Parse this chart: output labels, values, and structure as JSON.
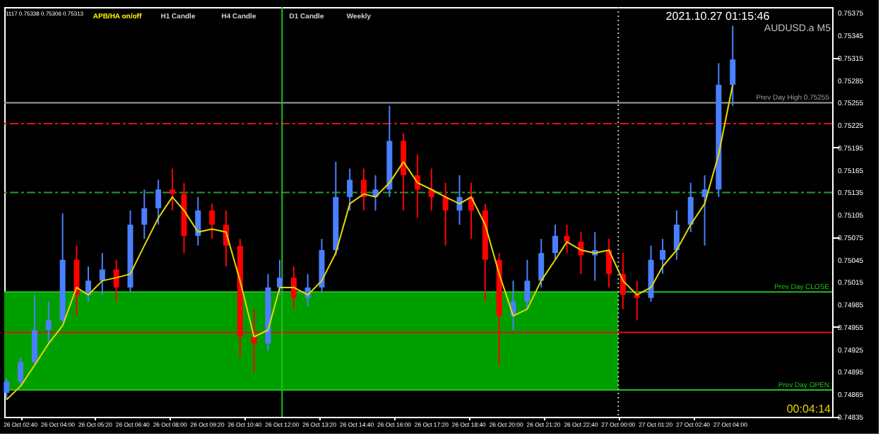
{
  "chart_data": {
    "type": "candlestick",
    "x": [
      "2021-10-26T02:10",
      "2021-10-26T02:40",
      "2021-10-26T03:10",
      "2021-10-26T03:40",
      "2021-10-26T04:10",
      "2021-10-26T04:40",
      "2021-10-26T05:05",
      "2021-10-26T05:35",
      "2021-10-26T06:05",
      "2021-10-26T06:35",
      "2021-10-26T07:05",
      "2021-10-26T07:35",
      "2021-10-26T08:05",
      "2021-10-26T08:30",
      "2021-10-26T09:00",
      "2021-10-26T09:30",
      "2021-10-26T10:00",
      "2021-10-26T10:30",
      "2021-10-26T11:00",
      "2021-10-26T11:30",
      "2021-10-26T11:55",
      "2021-10-26T12:25",
      "2021-10-26T12:55",
      "2021-10-26T13:25",
      "2021-10-26T13:55",
      "2021-10-26T14:25",
      "2021-10-26T14:55",
      "2021-10-26T15:20",
      "2021-10-26T15:50",
      "2021-10-26T16:20",
      "2021-10-26T16:50",
      "2021-10-26T17:20",
      "2021-10-26T17:50",
      "2021-10-26T18:20",
      "2021-10-26T18:45",
      "2021-10-26T19:15",
      "2021-10-26T19:45",
      "2021-10-26T20:15",
      "2021-10-26T20:45",
      "2021-10-26T21:15",
      "2021-10-26T21:45",
      "2021-10-26T22:10",
      "2021-10-26T22:40",
      "2021-10-26T23:10",
      "2021-10-26T23:40",
      "2021-10-27T00:10",
      "2021-10-27T00:40",
      "2021-10-27T01:10",
      "2021-10-27T01:35",
      "2021-10-27T02:05",
      "2021-10-27T02:35",
      "2021-10-27T03:05",
      "2021-10-27T03:35",
      "2021-10-27T04:05"
    ],
    "ohlc": [
      [
        0.74867,
        0.74886,
        0.74858,
        0.74882
      ],
      [
        0.74882,
        0.74914,
        0.74876,
        0.74908
      ],
      [
        0.74908,
        0.74998,
        0.74904,
        0.74951
      ],
      [
        0.74951,
        0.74989,
        0.74933,
        0.74964
      ],
      [
        0.74964,
        0.75107,
        0.74961,
        0.75045
      ],
      [
        0.75045,
        0.75064,
        0.7497,
        0.74998
      ],
      [
        0.74998,
        0.75036,
        0.74989,
        0.75017
      ],
      [
        0.75017,
        0.75054,
        0.74998,
        0.75032
      ],
      [
        0.75032,
        0.75045,
        0.74989,
        0.75008
      ],
      [
        0.75008,
        0.75111,
        0.75002,
        0.75092
      ],
      [
        0.75092,
        0.75139,
        0.75073,
        0.75114
      ],
      [
        0.75114,
        0.75152,
        0.75092,
        0.75139
      ],
      [
        0.75139,
        0.75167,
        0.75111,
        0.75133
      ],
      [
        0.75133,
        0.75148,
        0.75054,
        0.75077
      ],
      [
        0.75077,
        0.75129,
        0.75064,
        0.75111
      ],
      [
        0.75111,
        0.7512,
        0.75073,
        0.75092
      ],
      [
        0.75092,
        0.75111,
        0.75036,
        0.75064
      ],
      [
        0.75064,
        0.75073,
        0.74914,
        0.74942
      ],
      [
        0.74942,
        0.74979,
        0.74895,
        0.74933
      ],
      [
        0.74933,
        0.75026,
        0.74923,
        0.75008
      ],
      [
        0.75008,
        0.75045,
        0.74998,
        0.75021
      ],
      [
        0.75021,
        0.75036,
        0.74979,
        0.74994
      ],
      [
        0.74994,
        0.75026,
        0.74983,
        0.75008
      ],
      [
        0.75008,
        0.75073,
        0.75002,
        0.75058
      ],
      [
        0.75058,
        0.75176,
        0.75051,
        0.75129
      ],
      [
        0.75129,
        0.75167,
        0.75111,
        0.75152
      ],
      [
        0.75152,
        0.75167,
        0.75111,
        0.75129
      ],
      [
        0.75129,
        0.75158,
        0.75111,
        0.75139
      ],
      [
        0.75139,
        0.75251,
        0.75129,
        0.75204
      ],
      [
        0.75204,
        0.75214,
        0.75111,
        0.75158
      ],
      [
        0.75158,
        0.75186,
        0.75101,
        0.75139
      ],
      [
        0.75139,
        0.75167,
        0.75111,
        0.75129
      ],
      [
        0.75129,
        0.75148,
        0.75064,
        0.75111
      ],
      [
        0.75111,
        0.75158,
        0.75092,
        0.75129
      ],
      [
        0.75129,
        0.75148,
        0.75073,
        0.75111
      ],
      [
        0.75111,
        0.7512,
        0.74989,
        0.75045
      ],
      [
        0.75045,
        0.75054,
        0.74904,
        0.7497
      ],
      [
        0.7497,
        0.75017,
        0.74951,
        0.74989
      ],
      [
        0.74989,
        0.75045,
        0.74979,
        0.75017
      ],
      [
        0.75017,
        0.75073,
        0.75008,
        0.75054
      ],
      [
        0.75054,
        0.75092,
        0.75045,
        0.75077
      ],
      [
        0.75077,
        0.75092,
        0.75054,
        0.75069
      ],
      [
        0.75069,
        0.75082,
        0.75026,
        0.75051
      ],
      [
        0.75051,
        0.75082,
        0.75017,
        0.75058
      ],
      [
        0.75058,
        0.75073,
        0.75008,
        0.75026
      ],
      [
        0.75026,
        0.75054,
        0.74979,
        0.74998
      ],
      [
        0.74998,
        0.75017,
        0.74964,
        0.74994
      ],
      [
        0.74994,
        0.75064,
        0.74989,
        0.75045
      ],
      [
        0.75045,
        0.75073,
        0.75026,
        0.75058
      ],
      [
        0.75058,
        0.75111,
        0.75045,
        0.75092
      ],
      [
        0.75092,
        0.75148,
        0.75082,
        0.75129
      ],
      [
        0.75129,
        0.75158,
        0.75064,
        0.75139
      ],
      [
        0.75139,
        0.75308,
        0.75129,
        0.75279
      ],
      [
        0.75279,
        0.75358,
        0.75251,
        0.75313
      ]
    ],
    "colors": [
      "#4a7fff",
      "#4a7fff",
      "#4a7fff",
      "#4a7fff",
      "#4a7fff",
      "#ff0000",
      "#4a7fff",
      "#4a7fff",
      "#ff0000",
      "#4a7fff",
      "#4a7fff",
      "#4a7fff",
      "#ff0000",
      "#ff0000",
      "#4a7fff",
      "#ff0000",
      "#ff0000",
      "#ff0000",
      "#ff0000",
      "#4a7fff",
      "#4a7fff",
      "#ff0000",
      "#4a7fff",
      "#4a7fff",
      "#4a7fff",
      "#4a7fff",
      "#ff0000",
      "#4a7fff",
      "#4a7fff",
      "#ff0000",
      "#ff0000",
      "#ff0000",
      "#ff0000",
      "#4a7fff",
      "#ff0000",
      "#ff0000",
      "#ff0000",
      "#4a7fff",
      "#4a7fff",
      "#4a7fff",
      "#4a7fff",
      "#ff0000",
      "#ff0000",
      "#4a7fff",
      "#ff0000",
      "#ff0000",
      "#ff0000",
      "#4a7fff",
      "#4a7fff",
      "#4a7fff",
      "#4a7fff",
      "#4a7fff",
      "#4a7fff",
      "#4a7fff"
    ],
    "series": [
      {
        "type": "line",
        "color": "#e6d800",
        "values": [
          0.74858,
          0.74876,
          0.74904,
          0.74933,
          0.74957,
          0.75008,
          0.74998,
          0.75017,
          0.75021,
          0.75026,
          0.75064,
          0.75101,
          0.75129,
          0.75111,
          0.75082,
          0.75086,
          0.75082,
          0.75017,
          0.74942,
          0.74951,
          0.75008,
          0.75008,
          0.74998,
          0.75017,
          0.75054,
          0.7512,
          0.75133,
          0.75129,
          0.75148,
          0.75176,
          0.75148,
          0.75139,
          0.75129,
          0.7512,
          0.75129,
          0.75092,
          0.75026,
          0.7497,
          0.74979,
          0.75017,
          0.75045,
          0.75069,
          0.75058,
          0.75054,
          0.75058,
          0.75017,
          0.74998,
          0.75008,
          0.75036,
          0.75058,
          0.75092,
          0.7512,
          0.75186,
          0.75279
        ]
      }
    ],
    "xlim": [
      "2021-10-26T02:05",
      "2021-10-27T07:38"
    ],
    "ylim": [
      0.74835,
      0.75383
    ],
    "xticks": [
      {
        "value": "2021-10-26T02:40",
        "label": "26 Oct 02:40"
      },
      {
        "value": "2021-10-26T04:00",
        "label": "26 Oct 04:00"
      },
      {
        "value": "2021-10-26T05:20",
        "label": "26 Oct 05:20"
      },
      {
        "value": "2021-10-26T06:40",
        "label": "26 Oct 06:40"
      },
      {
        "value": "2021-10-26T08:00",
        "label": "26 Oct 08:00"
      },
      {
        "value": "2021-10-26T09:20",
        "label": "26 Oct 09:20"
      },
      {
        "value": "2021-10-26T10:40",
        "label": "26 Oct 10:40"
      },
      {
        "value": "2021-10-26T12:00",
        "label": "26 Oct 12:00"
      },
      {
        "value": "2021-10-26T13:20",
        "label": "26 Oct 13:20"
      },
      {
        "value": "2021-10-26T14:40",
        "label": "26 Oct 14:40"
      },
      {
        "value": "2021-10-26T16:00",
        "label": "26 Oct 16:00"
      },
      {
        "value": "2021-10-26T17:20",
        "label": "26 Oct 17:20"
      },
      {
        "value": "2021-10-26T18:40",
        "label": "26 Oct 18:40"
      },
      {
        "value": "2021-10-26T20:00",
        "label": "26 Oct 20:00"
      },
      {
        "value": "2021-10-26T21:20",
        "label": "26 Oct 21:20"
      },
      {
        "value": "2021-10-26T22:40",
        "label": "26 Oct 22:40"
      },
      {
        "value": "2021-10-27T00:00",
        "label": "27 Oct 00:00"
      },
      {
        "value": "2021-10-27T01:20",
        "label": "27 Oct 01:20"
      },
      {
        "value": "2021-10-27T02:40",
        "label": "27 Oct 02:40"
      },
      {
        "value": "2021-10-27T04:00",
        "label": "27 Oct 04:00"
      }
    ],
    "yticks": [
      0.75375,
      0.75345,
      0.75315,
      0.75285,
      0.75255,
      0.75225,
      0.75195,
      0.75165,
      0.75135,
      0.75105,
      0.75075,
      0.75045,
      0.75015,
      0.74985,
      0.74955,
      0.74925,
      0.74895,
      0.74865,
      0.74835
    ],
    "grid": false,
    "ref_lines": [
      {
        "axis": "y",
        "value": 0.75255,
        "label": "Prev Day High 0.75255",
        "color": "#a0a0a0",
        "line_style": "solid"
      },
      {
        "axis": "y",
        "value": 0.75227,
        "label": null,
        "color": "#e01010",
        "line_style": "dashed"
      },
      {
        "axis": "y",
        "value": 0.75135,
        "label": null,
        "color": "#20a020",
        "line_style": "dashed"
      },
      {
        "axis": "y",
        "value": 0.75002,
        "label": "Prev Day CLOSE",
        "color": "#20c020",
        "line_style": "solid"
      },
      {
        "axis": "y",
        "value": 0.74948,
        "label": null,
        "color": "#e01010",
        "line_style": "solid"
      },
      {
        "axis": "y",
        "value": 0.74871,
        "label": "Prev Day OPEN",
        "color": "#20c020",
        "line_style": "solid"
      },
      {
        "axis": "x",
        "value": "2021-10-26T12:00",
        "label": null,
        "color": "#20c020",
        "line_style": "solid"
      },
      {
        "axis": "x",
        "value": "2021-10-27T00:00",
        "label": null,
        "color": "#c0c0c0",
        "line_style": "dotted"
      }
    ],
    "bands": [
      {
        "axis": "y",
        "from": 0.74871,
        "to": 0.75002,
        "label": null,
        "color": "#009f00"
      }
    ],
    "annotations": [
      "1117 0.75338 0.75306 0.75313",
      "APB/HA on/off",
      "H1 Candle",
      "H4 Candle",
      "D1 Candle",
      "Weekly",
      "2021.10.27 01:15:46",
      "AUDUSD.a M5",
      "00:04:14"
    ]
  }
}
